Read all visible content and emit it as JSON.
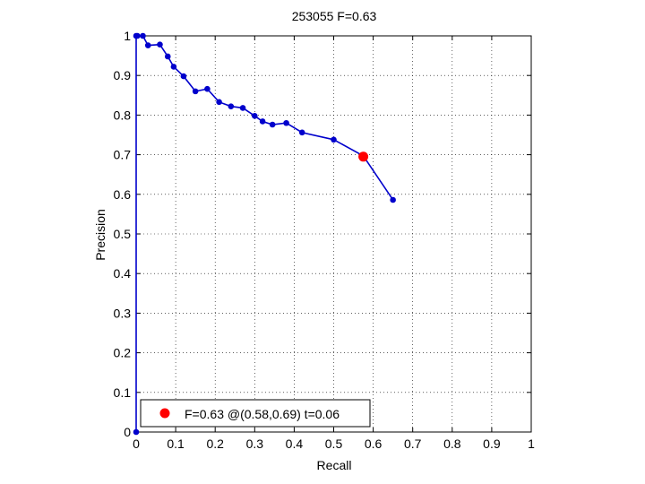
{
  "chart_data": {
    "type": "line",
    "title": "253055 F=0.63",
    "xlabel": "Recall",
    "ylabel": "Precision",
    "xlim": [
      0,
      1
    ],
    "ylim": [
      0,
      1
    ],
    "xticks": [
      0,
      0.1,
      0.2,
      0.3,
      0.4,
      0.5,
      0.6,
      0.7,
      0.8,
      0.9,
      1
    ],
    "yticks": [
      0,
      0.1,
      0.2,
      0.3,
      0.4,
      0.5,
      0.6,
      0.7,
      0.8,
      0.9,
      1
    ],
    "xtick_labels": [
      "0",
      "0.1",
      "0.2",
      "0.3",
      "0.4",
      "0.5",
      "0.6",
      "0.7",
      "0.8",
      "0.9",
      "1"
    ],
    "ytick_labels": [
      "0",
      "0.1",
      "0.2",
      "0.3",
      "0.4",
      "0.5",
      "0.6",
      "0.7",
      "0.8",
      "0.9",
      "1"
    ],
    "grid": true,
    "grid_style": "dotted",
    "legend_position": "bottom-left",
    "series": [
      {
        "color": "#0000cc",
        "x": [
          0,
          0,
          0.003,
          0.017,
          0.03,
          0.06,
          0.08,
          0.095,
          0.12,
          0.15,
          0.18,
          0.21,
          0.24,
          0.27,
          0.3,
          0.32,
          0.345,
          0.38,
          0.42,
          0.5,
          0.575,
          0.65
        ],
        "y": [
          0,
          1,
          1,
          1,
          0.976,
          0.978,
          0.948,
          0.922,
          0.898,
          0.86,
          0.866,
          0.833,
          0.822,
          0.818,
          0.798,
          0.784,
          0.776,
          0.78,
          0.756,
          0.738,
          0.697,
          0.586
        ]
      }
    ],
    "highlight_point": {
      "x": 0.575,
      "y": 0.695,
      "color": "#ff0000"
    },
    "legend": {
      "entries": [
        {
          "label": "F=0.63 @(0.58,0.69) t=0.06",
          "color": "#ff0000"
        }
      ]
    }
  }
}
